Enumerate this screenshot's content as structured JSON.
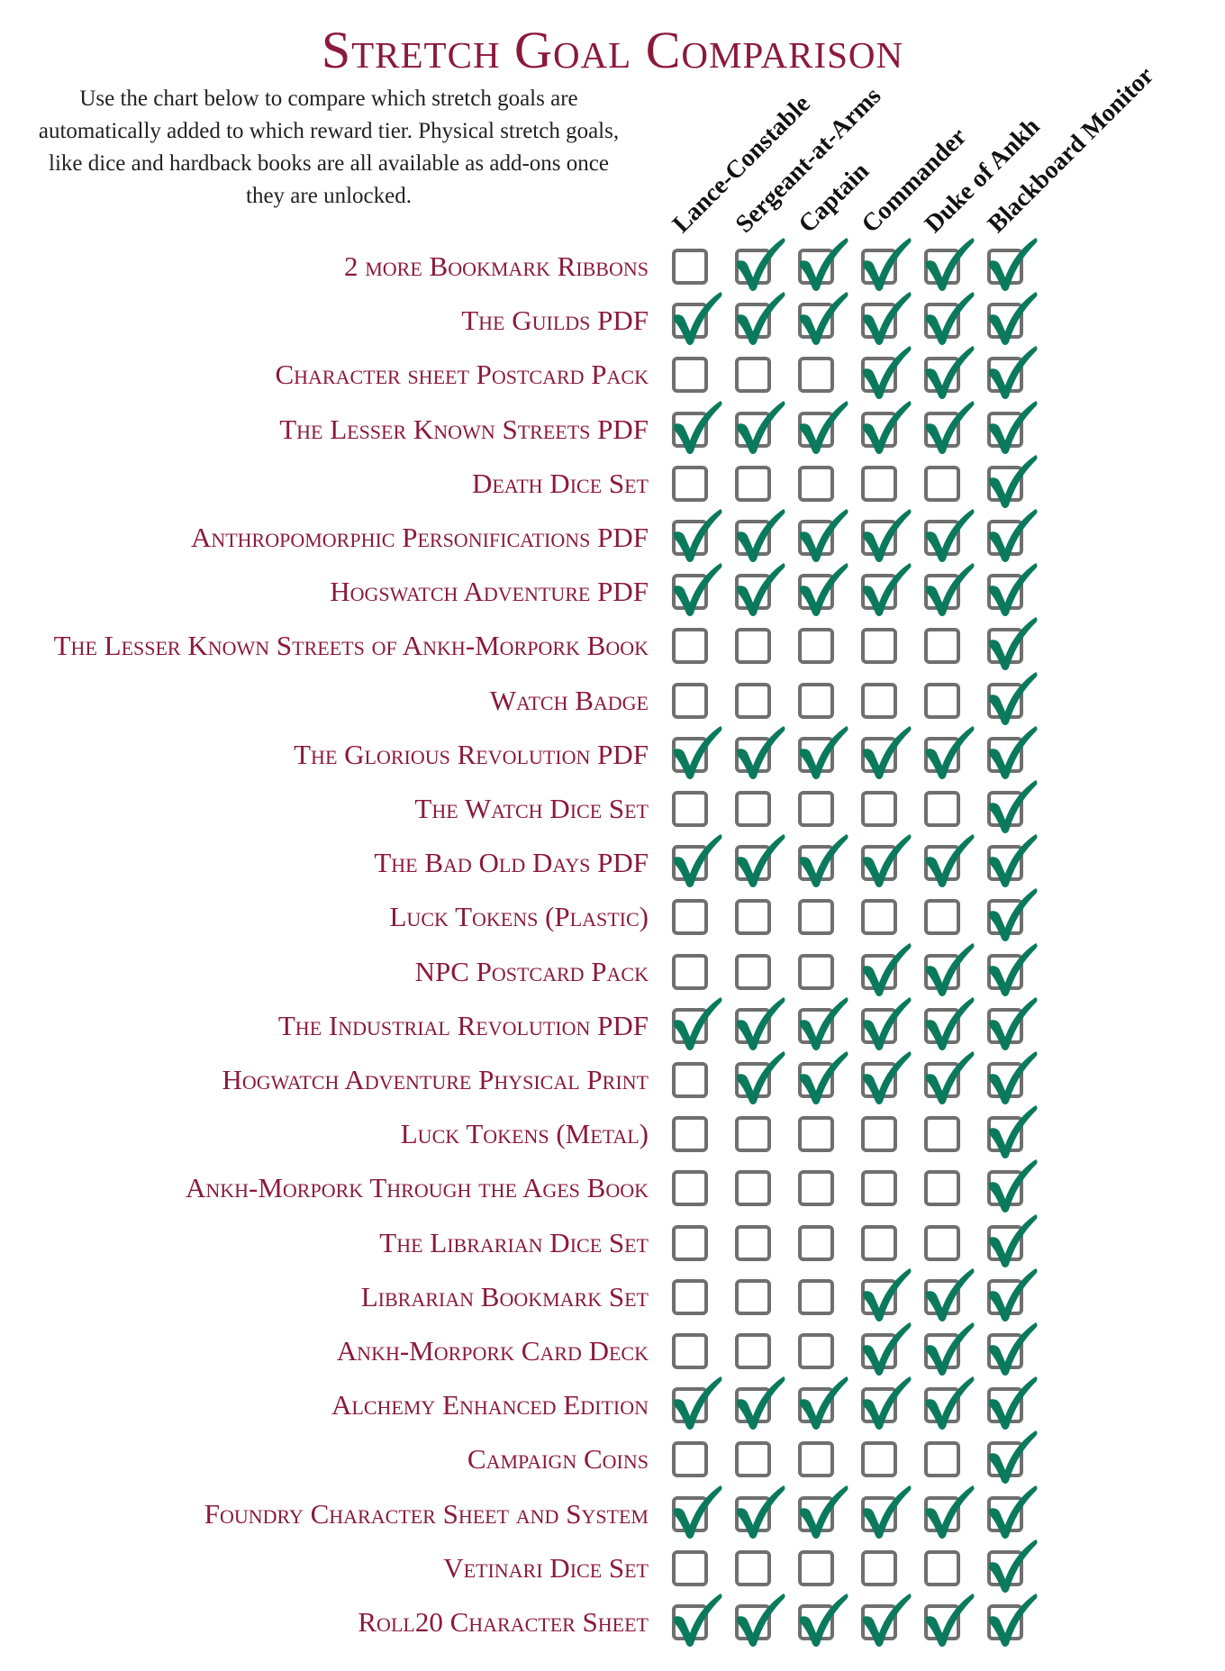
{
  "title": "Stretch Goal Comparison",
  "intro": "Use the chart below to compare which stretch goals are automatically added to which reward tier. Physical stretch goals, like dice and hardback books are all available as add-ons once they are unlocked.",
  "colors": {
    "title": "#8b1a3a",
    "check": "#0b7a5c",
    "box": "#6f6f6f"
  },
  "icons": {
    "checked": "check-mark-icon",
    "unchecked": "empty-checkbox-icon"
  },
  "tiers": [
    "Lance-Constable",
    "Sergeant-at-Arms",
    "Captain",
    "Commander",
    "Duke of Ankh",
    "Blackboard Monitor"
  ],
  "rows": [
    {
      "label": "2 more Bookmark Ribbons",
      "checks": [
        0,
        1,
        1,
        1,
        1,
        1
      ]
    },
    {
      "label": "The Guilds PDF",
      "checks": [
        1,
        1,
        1,
        1,
        1,
        1
      ]
    },
    {
      "label": "Character sheet Postcard Pack",
      "checks": [
        0,
        0,
        0,
        1,
        1,
        1
      ]
    },
    {
      "label": "The Lesser Known Streets PDF",
      "checks": [
        1,
        1,
        1,
        1,
        1,
        1
      ]
    },
    {
      "label": "Death Dice Set",
      "checks": [
        0,
        0,
        0,
        0,
        0,
        1
      ]
    },
    {
      "label": "Anthropomorphic Personifications PDF",
      "checks": [
        1,
        1,
        1,
        1,
        1,
        1
      ]
    },
    {
      "label": "Hogswatch Adventure PDF",
      "checks": [
        1,
        1,
        1,
        1,
        1,
        1
      ]
    },
    {
      "label": "The Lesser Known Streets of Ankh-Morpork Book",
      "checks": [
        0,
        0,
        0,
        0,
        0,
        1
      ]
    },
    {
      "label": "Watch Badge",
      "checks": [
        0,
        0,
        0,
        0,
        0,
        1
      ]
    },
    {
      "label": "The Glorious Revolution PDF",
      "checks": [
        1,
        1,
        1,
        1,
        1,
        1
      ]
    },
    {
      "label": "The Watch Dice Set",
      "checks": [
        0,
        0,
        0,
        0,
        0,
        1
      ]
    },
    {
      "label": "The Bad Old Days PDF",
      "checks": [
        1,
        1,
        1,
        1,
        1,
        1
      ]
    },
    {
      "label": "Luck Tokens (Plastic)",
      "checks": [
        0,
        0,
        0,
        0,
        0,
        1
      ]
    },
    {
      "label": "NPC Postcard Pack",
      "checks": [
        0,
        0,
        0,
        1,
        1,
        1
      ]
    },
    {
      "label": "The Industrial Revolution PDF",
      "checks": [
        1,
        1,
        1,
        1,
        1,
        1
      ]
    },
    {
      "label": "Hogwatch Adventure Physical Print",
      "checks": [
        0,
        1,
        1,
        1,
        1,
        1
      ]
    },
    {
      "label": "Luck Tokens (Metal)",
      "checks": [
        0,
        0,
        0,
        0,
        0,
        1
      ]
    },
    {
      "label": "Ankh-Morpork Through the Ages Book",
      "checks": [
        0,
        0,
        0,
        0,
        0,
        1
      ]
    },
    {
      "label": "The Librarian Dice Set",
      "checks": [
        0,
        0,
        0,
        0,
        0,
        1
      ]
    },
    {
      "label": "Librarian Bookmark Set",
      "checks": [
        0,
        0,
        0,
        1,
        1,
        1
      ]
    },
    {
      "label": "Ankh-Morpork Card Deck",
      "checks": [
        0,
        0,
        0,
        1,
        1,
        1
      ]
    },
    {
      "label": "Alchemy Enhanced Edition",
      "checks": [
        1,
        1,
        1,
        1,
        1,
        1
      ]
    },
    {
      "label": "Campaign Coins",
      "checks": [
        0,
        0,
        0,
        0,
        0,
        1
      ]
    },
    {
      "label": "Foundry Character Sheet and System",
      "checks": [
        1,
        1,
        1,
        1,
        1,
        1
      ]
    },
    {
      "label": "Vetinari Dice Set",
      "checks": [
        0,
        0,
        0,
        0,
        0,
        1
      ]
    },
    {
      "label": "Roll20 Character Sheet",
      "checks": [
        1,
        1,
        1,
        1,
        1,
        1
      ]
    }
  ]
}
